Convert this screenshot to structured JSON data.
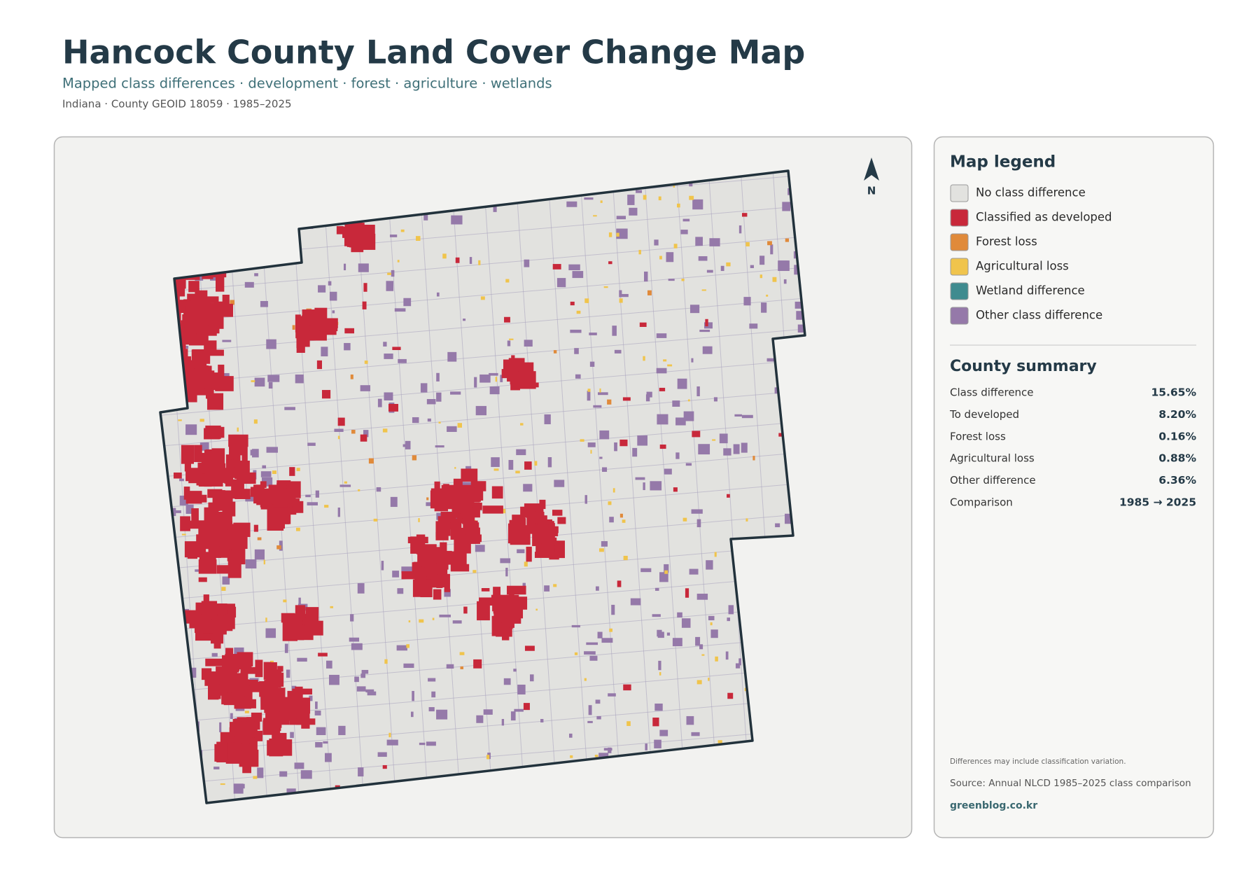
{
  "header": {
    "title": "Hancock County Land Cover Change Map",
    "subtitle": "Mapped class differences · development · forest · agriculture · wetlands",
    "meta": "Indiana · County GEOID 18059 · 1985–2025"
  },
  "map": {
    "north_label": "N"
  },
  "legend": {
    "title": "Map legend",
    "items": [
      {
        "label": "No class difference",
        "color": "#e2e2df"
      },
      {
        "label": "Classified as developed",
        "color": "#c8283a"
      },
      {
        "label": "Forest loss",
        "color": "#e08a3a"
      },
      {
        "label": "Agricultural loss",
        "color": "#f0c44c"
      },
      {
        "label": "Wetland difference",
        "color": "#3f8b8f"
      },
      {
        "label": "Other class difference",
        "color": "#9579a9"
      }
    ]
  },
  "summary": {
    "title": "County summary",
    "rows": [
      {
        "label": "Class difference",
        "value": "15.65%"
      },
      {
        "label": "To developed",
        "value": "8.20%"
      },
      {
        "label": "Forest loss",
        "value": "0.16%"
      },
      {
        "label": "Agricultural loss",
        "value": "0.88%"
      },
      {
        "label": "Other difference",
        "value": "6.36%"
      },
      {
        "label": "Comparison",
        "value": "1985 → 2025"
      }
    ]
  },
  "footer": {
    "note": "Differences may include classification variation.",
    "source": "Source: Annual NLCD 1985–2025 class comparison",
    "credit": "greenblog.co.kr"
  }
}
